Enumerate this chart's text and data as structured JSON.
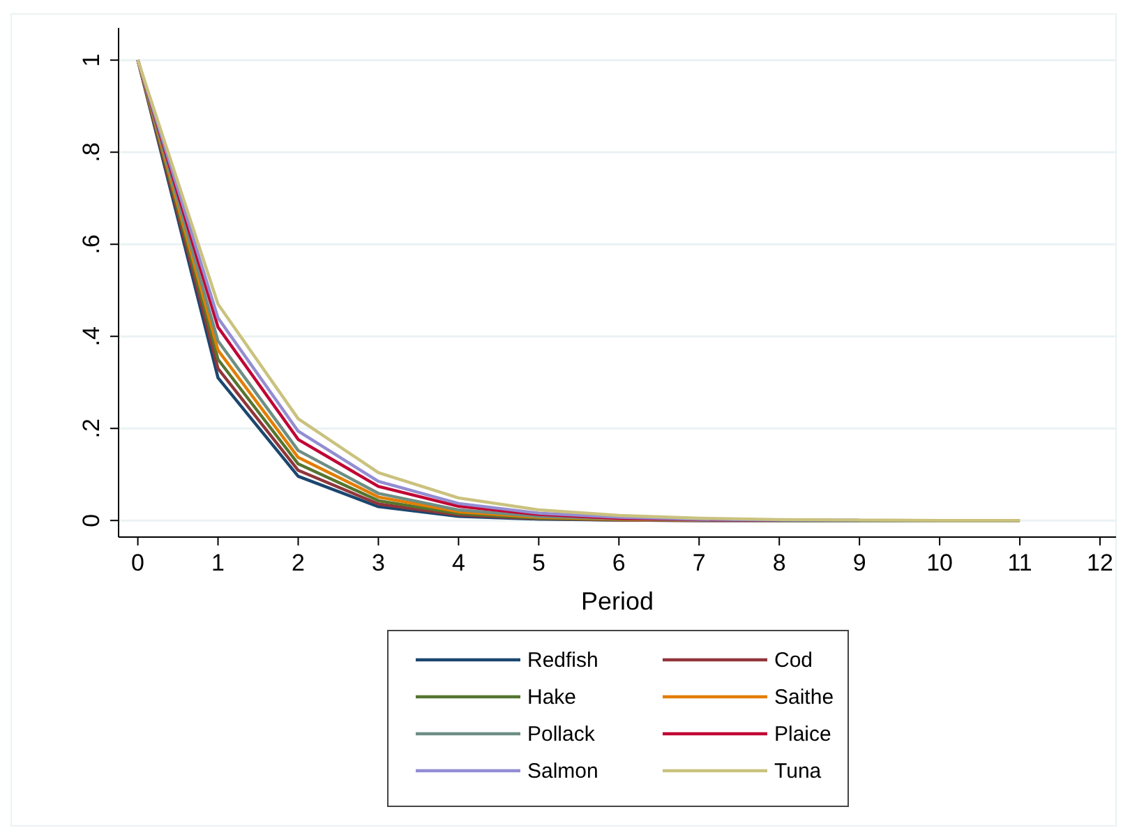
{
  "chart_data": {
    "type": "line",
    "xlabel": "Period",
    "x": [
      0,
      1,
      2,
      3,
      4,
      5,
      6,
      7,
      8,
      9,
      10,
      11
    ],
    "xlim": [
      -0.24,
      12.2
    ],
    "xticks": [
      0,
      1,
      2,
      3,
      4,
      5,
      6,
      7,
      8,
      9,
      10,
      11,
      12
    ],
    "ylim": [
      -0.036,
      1.07
    ],
    "yticks": [
      0,
      {
        "value": 0.2,
        "label": ".2"
      },
      {
        "value": 0.4,
        "label": ".4"
      },
      {
        "value": 0.6,
        "label": ".6"
      },
      {
        "value": 0.8,
        "label": ".8"
      },
      1
    ],
    "grid": "y",
    "legend": "bottom",
    "marker": "none",
    "line_style": "solid",
    "series": [
      {
        "name": "Redfish",
        "color": "#1a476f",
        "values": [
          1,
          0.31,
          0.096,
          0.03,
          0.009,
          0.003,
          0.001,
          0,
          0,
          0,
          null,
          null
        ]
      },
      {
        "name": "Cod",
        "color": "#90353b",
        "values": [
          1,
          0.33,
          0.109,
          0.036,
          0.012,
          0.004,
          0.001,
          0,
          0,
          0,
          0,
          0
        ]
      },
      {
        "name": "Hake",
        "color": "#55752f",
        "values": [
          1,
          0.35,
          0.123,
          0.043,
          0.015,
          0.005,
          0.002,
          0.001,
          0,
          0,
          0,
          0
        ]
      },
      {
        "name": "Saithe",
        "color": "#e37e00",
        "values": [
          1,
          0.37,
          0.137,
          0.051,
          0.019,
          0.007,
          0.003,
          0.001,
          null,
          null,
          null,
          null
        ]
      },
      {
        "name": "Pollack",
        "color": "#6e8e84",
        "values": [
          1,
          0.39,
          0.152,
          0.059,
          0.023,
          0.009,
          0.004,
          0.001,
          0.001,
          0,
          0,
          0
        ]
      },
      {
        "name": "Plaice",
        "color": "#c10534",
        "values": [
          1,
          0.42,
          0.176,
          0.074,
          0.031,
          0.013,
          0.005,
          0.002,
          0.001,
          null,
          null,
          null
        ]
      },
      {
        "name": "Salmon",
        "color": "#938dd2",
        "values": [
          1,
          0.44,
          0.194,
          0.085,
          0.037,
          0.016,
          0.007,
          0.003,
          0.001,
          0.001,
          null,
          null
        ]
      },
      {
        "name": "Tuna",
        "color": "#cac27e",
        "values": [
          1,
          0.47,
          0.221,
          0.104,
          0.049,
          0.023,
          0.011,
          0.005,
          0.002,
          0.001,
          0,
          0
        ]
      }
    ]
  }
}
